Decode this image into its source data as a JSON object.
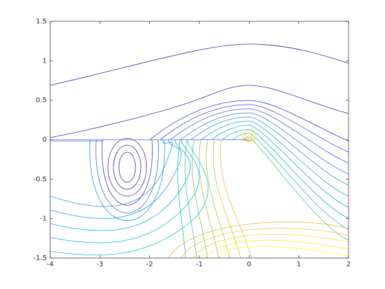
{
  "chart_data": {
    "type": "contour",
    "xlim": [
      -4,
      2
    ],
    "ylim": [
      -1.5,
      1.5
    ],
    "xticks": [
      -4,
      -3,
      -2,
      -1,
      0,
      1,
      2
    ],
    "yticks": [
      -1.5,
      -1,
      -0.5,
      0,
      0.5,
      1,
      1.5
    ]
  }
}
